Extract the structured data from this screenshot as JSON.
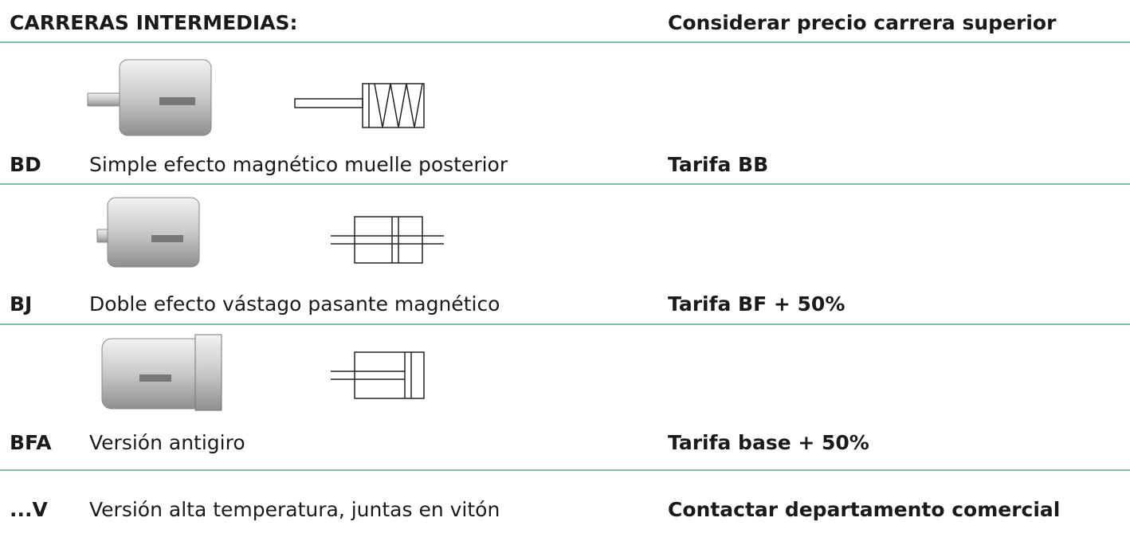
{
  "header": {
    "title": "CARRERAS INTERMEDIAS:",
    "note": "Considerar precio carrera superior"
  },
  "rows": [
    {
      "code": "BD",
      "description": "Simple efecto magnético muelle posterior",
      "price": "Tarifa BB"
    },
    {
      "code": "BJ",
      "description": "Doble efecto vástago pasante magnético",
      "price": "Tarifa BF + 50%"
    },
    {
      "code": "BFA",
      "description": "Versión antigiro",
      "price": "Tarifa base + 50%"
    },
    {
      "code": "...V",
      "description": "Versión alta temperatura, juntas en vitón",
      "price": "Contactar departamento comercial"
    }
  ]
}
